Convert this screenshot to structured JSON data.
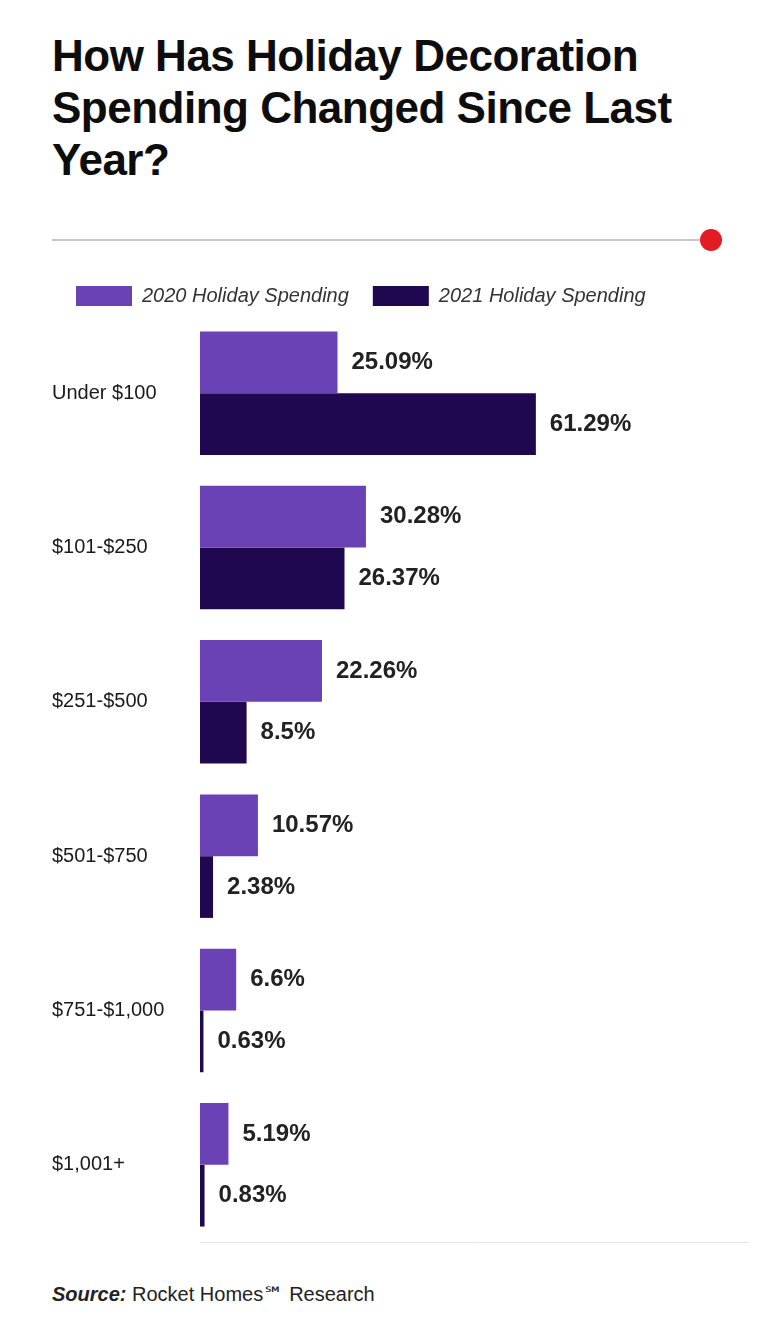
{
  "chart_data": {
    "type": "bar",
    "orientation": "horizontal",
    "title": "How Has Holiday Decoration Spending Changed Since Last Year?",
    "source": {
      "label": "Source:",
      "text": "Rocket Homes℠ Research"
    },
    "categories": [
      "Under $100",
      "$101-$250",
      "$251-$500",
      "$501-$750",
      "$751-$1,000",
      "$1,001+"
    ],
    "series": [
      {
        "name": "2020 Holiday Spending",
        "color": "#6b42b5",
        "values": [
          25.09,
          30.28,
          22.26,
          10.57,
          6.6,
          5.19
        ],
        "value_labels": [
          "25.09%",
          "30.28%",
          "22.26%",
          "10.57%",
          "6.6%",
          "5.19%"
        ]
      },
      {
        "name": "2021 Holiday Spending",
        "color": "#1f0850",
        "values": [
          61.29,
          26.37,
          8.5,
          2.38,
          0.63,
          0.83
        ],
        "value_labels": [
          "61.29%",
          "26.37%",
          "8.5%",
          "2.38%",
          "0.63%",
          "0.83%"
        ]
      }
    ],
    "xlim": [
      0,
      100
    ],
    "grid": false,
    "legend": "top",
    "data_labels": true,
    "tick_labels": "y"
  }
}
